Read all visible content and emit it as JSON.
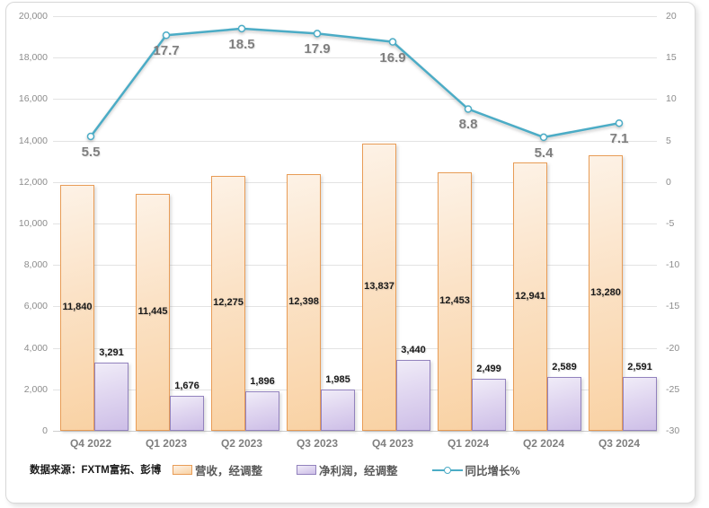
{
  "source_note": "数据来源：FXTM富拓、彭博",
  "colors": {
    "revenue_fill_top": "#FDF2E6",
    "revenue_fill_bottom": "#F9D2A4",
    "revenue_border": "#E89C56",
    "profit_fill_top": "#F0ECF8",
    "profit_fill_bottom": "#CDBEE7",
    "profit_border": "#9282BD",
    "growth_line": "#4BACC6",
    "gridline": "#E3E3E3",
    "axis_text": "#8C8C8C",
    "bar_label_text": "#1A1A1A",
    "line_label_text": "#7F7F7F",
    "legend_text": "#595959"
  },
  "chart_data": {
    "type": "bar",
    "subtype": "combo-bar-line",
    "categories": [
      "Q4 2022",
      "Q1 2023",
      "Q2 2023",
      "Q3 2023",
      "Q4 2023",
      "Q1 2024",
      "Q2 2024",
      "Q3 2024"
    ],
    "series": [
      {
        "name": "营收，经调整",
        "type": "bar",
        "axis": "left",
        "values": [
          11840,
          11445,
          12275,
          12398,
          13837,
          12453,
          12941,
          13280
        ],
        "labels": [
          "11,840",
          "11,445",
          "12,275",
          "12,398",
          "13,837",
          "12,453",
          "12,941",
          "13,280"
        ],
        "label_position": "inside-center"
      },
      {
        "name": "净利润，经调整",
        "type": "bar",
        "axis": "left",
        "values": [
          3291,
          1676,
          1896,
          1985,
          3440,
          2499,
          2589,
          2591
        ],
        "labels": [
          "3,291",
          "1,676",
          "1,896",
          "1,985",
          "3,440",
          "2,499",
          "2,589",
          "2,591"
        ],
        "label_position": "outside-end"
      },
      {
        "name": "同比增长%",
        "type": "line",
        "axis": "right",
        "values": [
          5.5,
          17.7,
          18.5,
          17.9,
          16.9,
          8.8,
          5.4,
          7.1
        ],
        "labels": [
          "5.5",
          "17.7",
          "18.5",
          "17.9",
          "16.9",
          "8.8",
          "5.4",
          "7.1"
        ],
        "marker": "circle"
      }
    ],
    "left_axis": {
      "min": 0,
      "max": 20000,
      "step": 2000,
      "tick_labels": [
        "0",
        "2,000",
        "4,000",
        "6,000",
        "8,000",
        "10,000",
        "12,000",
        "14,000",
        "16,000",
        "18,000",
        "20,000"
      ]
    },
    "right_axis": {
      "min": -30,
      "max": 20,
      "step": 5,
      "tick_labels": [
        "-30",
        "-25",
        "-20",
        "-15",
        "-10",
        "-5",
        "0",
        "5",
        "10",
        "15",
        "20"
      ]
    },
    "grid": true,
    "legend_position": "bottom"
  }
}
